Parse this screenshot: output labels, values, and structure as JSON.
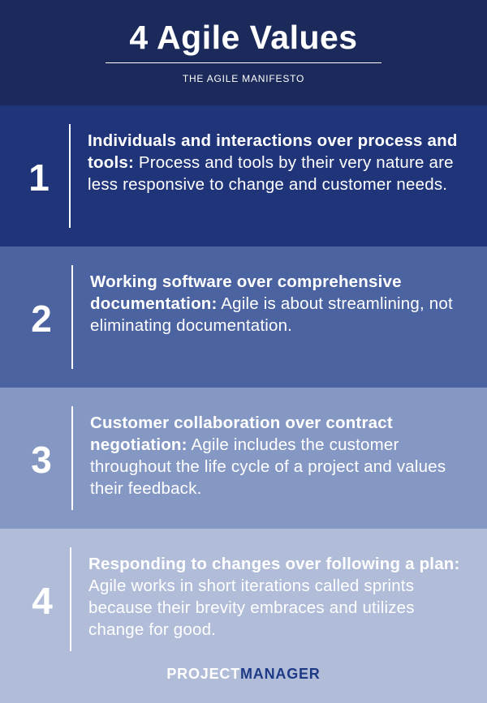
{
  "header": {
    "title": "4 Agile Values",
    "subtitle": "THE AGILE MANIFESTO"
  },
  "values": [
    {
      "number": "1",
      "heading": "Individuals and interactions over process and tools:",
      "body": " Process and tools by their very nature are less responsive to change and customer needs."
    },
    {
      "number": "2",
      "heading": "Working software over comprehensive documentation:",
      "body": " Agile is about streamlining, not eliminating documentation."
    },
    {
      "number": "3",
      "heading": "Customer collaboration over contract negotiation:",
      "body": " Agile includes the customer throughout the life cycle of a project and values their feedback."
    },
    {
      "number": "4",
      "heading": "Responding to changes over following a plan:",
      "body": " Agile works in short iterations called sprints because their brevity embraces and utilizes change for good."
    }
  ],
  "brand": {
    "part1": "PROJECT",
    "part2": "MANAGER"
  },
  "colors": {
    "header_bg": "#1b2a5b",
    "value1_bg": "#20347a",
    "value2_bg": "#4b63a0",
    "value3_bg": "#8598c4",
    "value4_bg": "#b1bdd8",
    "brand_accent": "#1e3a86"
  }
}
